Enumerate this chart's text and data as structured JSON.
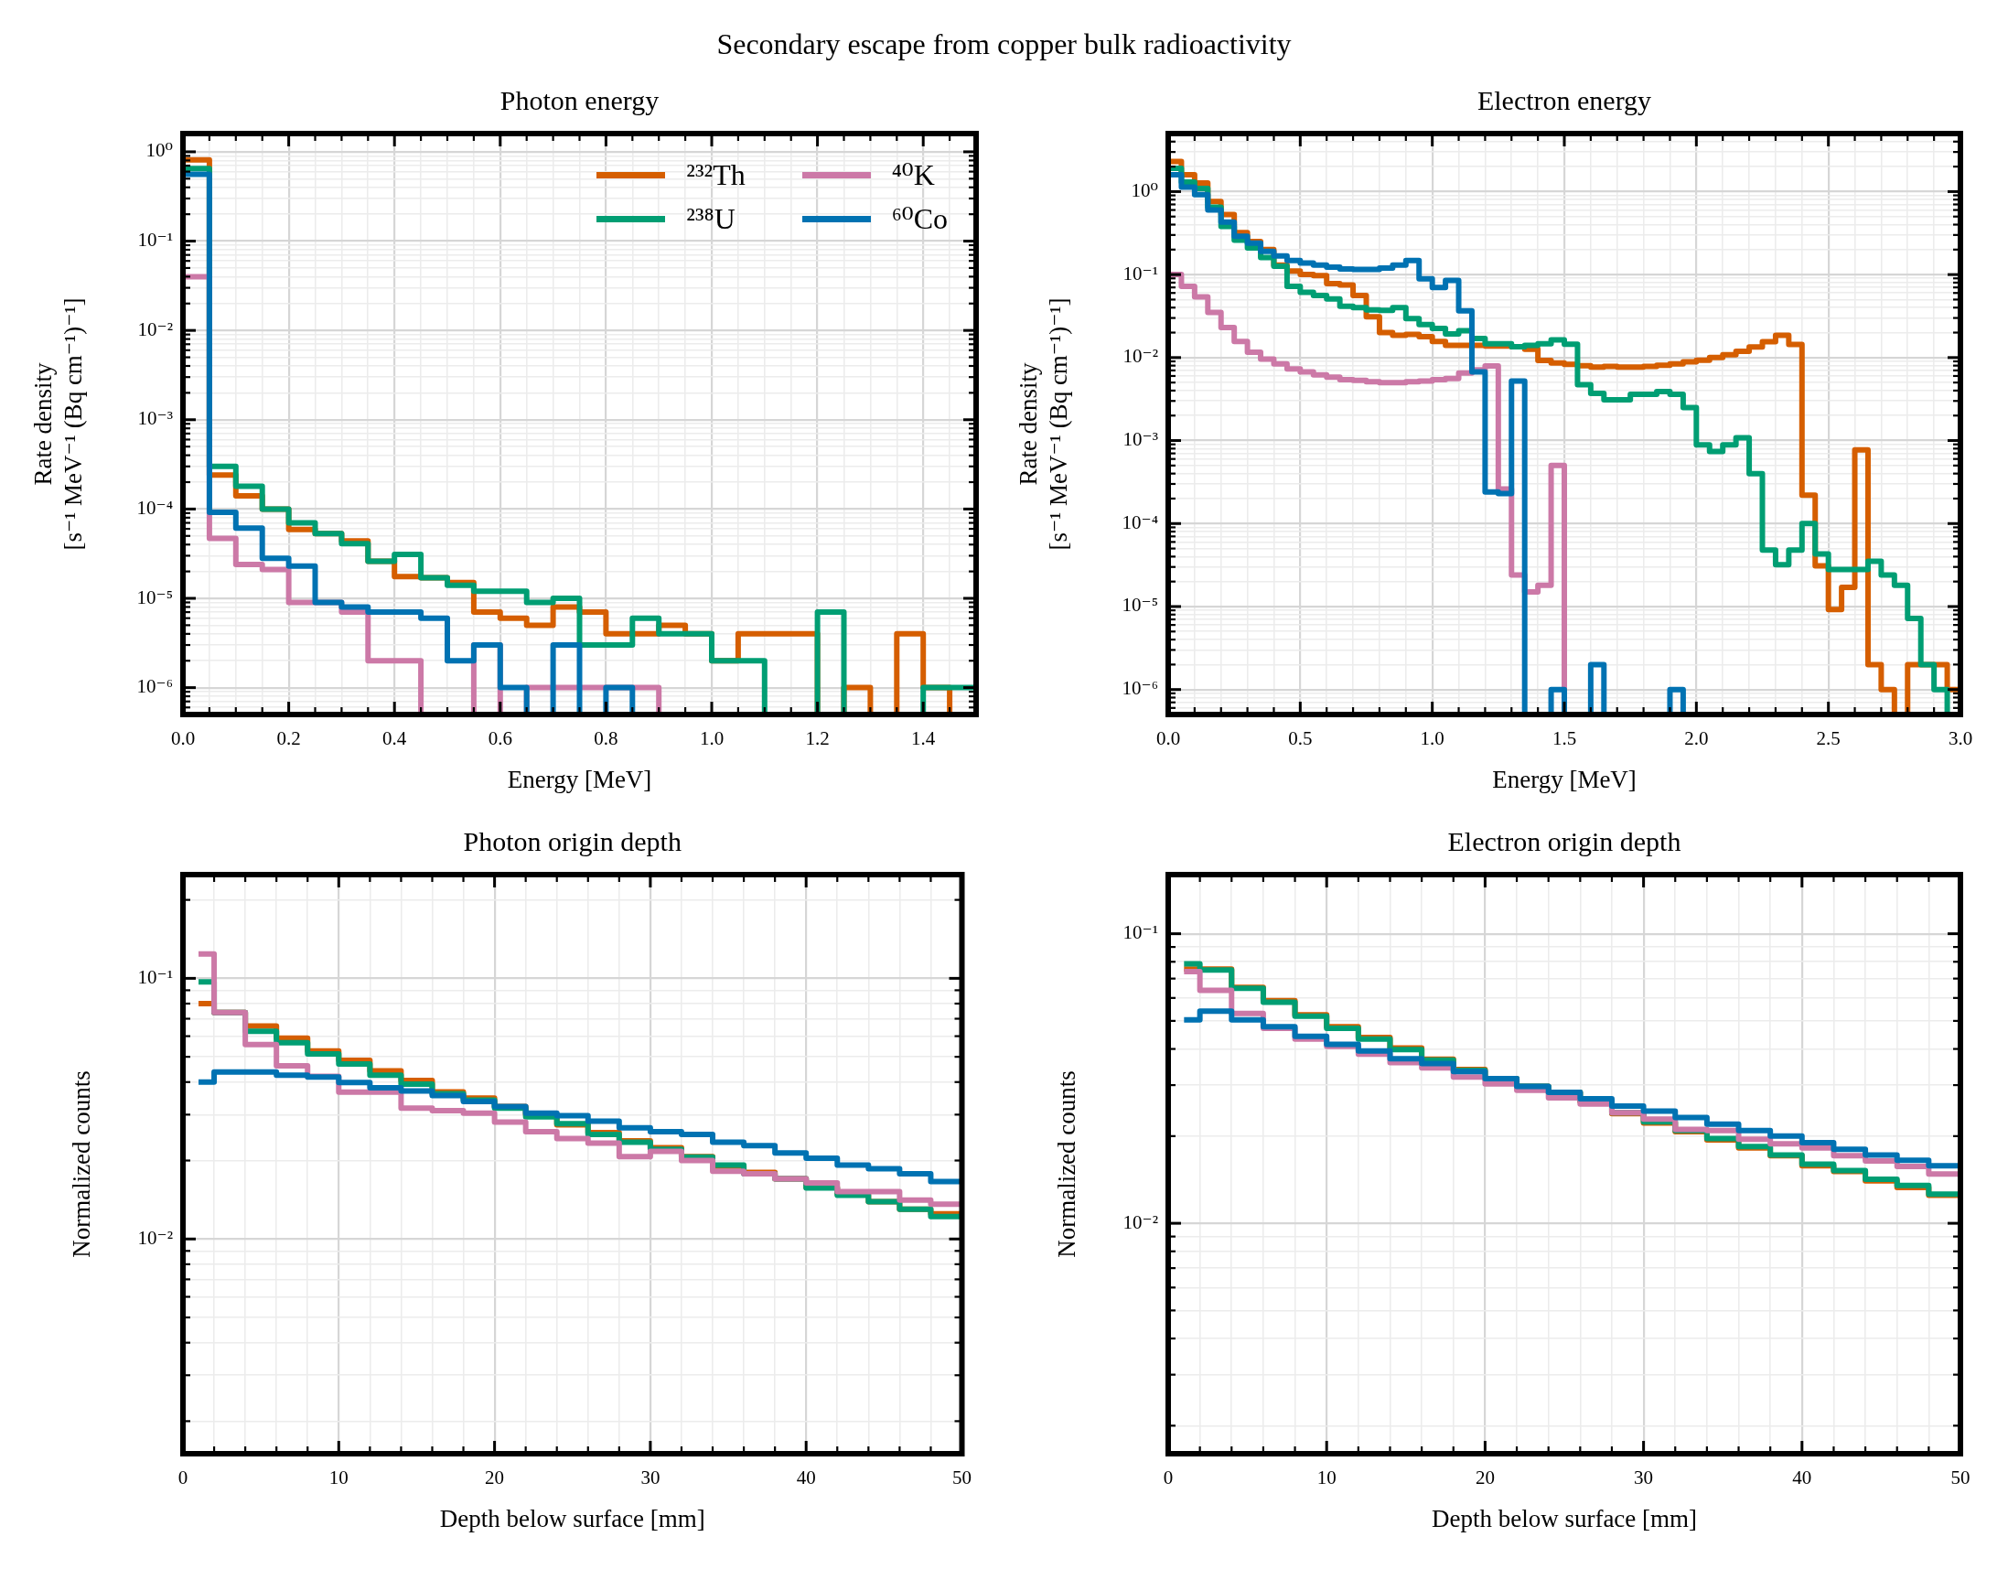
{
  "chart_data": [
    {
      "type": "other",
      "title": "Secondary escape from copper bulk radioactivity"
    },
    {
      "type": "histogram",
      "title": "Photon energy",
      "xlabel": "Energy [MeV]",
      "ylabel": "Rate density\n[s⁻¹ MeV⁻¹ (Bq cm⁻¹)⁻¹]",
      "log": "y",
      "grid": true,
      "legend": "top right",
      "bins": [
        0,
        0.05,
        0.1,
        0.15,
        0.2,
        0.25,
        0.3,
        0.35,
        0.4,
        0.45,
        0.5,
        0.55,
        0.6,
        0.65,
        0.7,
        0.75,
        0.8,
        0.85,
        0.9,
        0.95,
        1,
        1.05,
        1.1,
        1.15,
        1.2,
        1.25,
        1.3,
        1.35,
        1.4,
        1.45,
        1.5
      ],
      "series": [
        {
          "name": "²³²Th",
          "color": "#d55e00",
          "values": [
            0.81,
            0.00024,
            0.00014,
            0.0001,
            5.9e-05,
            5.3e-05,
            4.4e-05,
            2.6e-05,
            1.75e-05,
            1.7e-05,
            1.5e-05,
            7e-06,
            6e-06,
            5e-06,
            8e-06,
            7e-06,
            4e-06,
            4e-06,
            5e-06,
            4e-06,
            2e-06,
            4e-06,
            4e-06,
            4e-06,
            null,
            1e-06,
            null,
            4e-06,
            1e-06,
            null
          ]
        },
        {
          "name": "²³⁸U",
          "color": "#009e73",
          "values": [
            0.65,
            0.0003,
            0.00018,
            0.0001,
            7e-05,
            5.3e-05,
            4.1e-05,
            2.6e-05,
            3.1e-05,
            1.7e-05,
            1.4e-05,
            1.2e-05,
            1.2e-05,
            9e-06,
            1e-05,
            3e-06,
            3e-06,
            6e-06,
            4e-06,
            4e-06,
            2e-06,
            2e-06,
            null,
            null,
            7e-06,
            null,
            null,
            null,
            1e-06,
            1e-06
          ]
        },
        {
          "name": "⁴⁰K",
          "color": "#cc79a7",
          "values": [
            0.04,
            4.7e-05,
            2.4e-05,
            2.1e-05,
            9e-06,
            9e-06,
            7e-06,
            2e-06,
            2e-06,
            null,
            null,
            3e-06,
            null,
            1e-06,
            1e-06,
            1e-06,
            1e-06,
            1e-06,
            null,
            null,
            null,
            null,
            null,
            null,
            null,
            null,
            null,
            null,
            null,
            null
          ]
        },
        {
          "name": "⁶⁰Co",
          "color": "#0072b2",
          "values": [
            0.56,
            9.2e-05,
            6.1e-05,
            2.8e-05,
            2.3e-05,
            9e-06,
            8e-06,
            7e-06,
            7e-06,
            6e-06,
            2e-06,
            3e-06,
            1e-06,
            null,
            3e-06,
            null,
            1e-06,
            null,
            null,
            null,
            null,
            null,
            null,
            null,
            null,
            null,
            null,
            null,
            null,
            null
          ]
        }
      ],
      "xlim": [
        0,
        1.5
      ],
      "ylim": [
        5e-07,
        1.6
      ],
      "xticks": [
        {
          "value": 0,
          "label": "0.0"
        },
        {
          "value": 0.05,
          "label": null
        },
        {
          "value": 0.1,
          "label": null
        },
        {
          "value": 0.15,
          "label": null
        },
        0.2,
        {
          "value": 0.25,
          "label": null
        },
        {
          "value": 0.3,
          "label": null
        },
        {
          "value": 0.35,
          "label": null
        },
        0.4,
        {
          "value": 0.45,
          "label": null
        },
        {
          "value": 0.5,
          "label": null
        },
        {
          "value": 0.55,
          "label": null
        },
        0.6,
        {
          "value": 0.65,
          "label": null
        },
        {
          "value": 0.7,
          "label": null
        },
        {
          "value": 0.75,
          "label": null
        },
        0.8,
        {
          "value": 0.85,
          "label": null
        },
        {
          "value": 0.9,
          "label": null
        },
        {
          "value": 0.95,
          "label": null
        },
        {
          "value": 1,
          "label": "1.0"
        },
        {
          "value": 1.05,
          "label": null
        },
        {
          "value": 1.1,
          "label": null
        },
        {
          "value": 1.15,
          "label": null
        },
        1.2,
        {
          "value": 1.25,
          "label": null
        },
        {
          "value": 1.3,
          "label": null
        },
        {
          "value": 1.35,
          "label": null
        },
        1.4,
        {
          "value": 1.45,
          "label": null
        }
      ],
      "yticks": [
        {
          "value": 5e-07,
          "label": null
        },
        {
          "value": 6e-07,
          "label": null
        },
        {
          "value": 7e-07,
          "label": null
        },
        {
          "value": 8e-07,
          "label": null
        },
        {
          "value": 9e-07,
          "label": null
        },
        {
          "value": 1e-06,
          "label": "10⁻⁶"
        },
        {
          "value": 2e-06,
          "label": null
        },
        {
          "value": 3e-06,
          "label": null
        },
        {
          "value": 4e-06,
          "label": null
        },
        {
          "value": 5e-06,
          "label": null
        },
        {
          "value": 6e-06,
          "label": null
        },
        {
          "value": 7e-06,
          "label": null
        },
        {
          "value": 8e-06,
          "label": null
        },
        {
          "value": 9e-06,
          "label": null
        },
        {
          "value": 1e-05,
          "label": "10⁻⁵"
        },
        {
          "value": 2e-05,
          "label": null
        },
        {
          "value": 3e-05,
          "label": null
        },
        {
          "value": 4e-05,
          "label": null
        },
        {
          "value": 5e-05,
          "label": null
        },
        {
          "value": 6e-05,
          "label": null
        },
        {
          "value": 7e-05,
          "label": null
        },
        {
          "value": 8e-05,
          "label": null
        },
        {
          "value": 9e-05,
          "label": null
        },
        {
          "value": 0.0001,
          "label": "10⁻⁴"
        },
        {
          "value": 0.0002,
          "label": null
        },
        {
          "value": 0.0003,
          "label": null
        },
        {
          "value": 0.0004,
          "label": null
        },
        {
          "value": 0.0005,
          "label": null
        },
        {
          "value": 0.0006,
          "label": null
        },
        {
          "value": 0.0007,
          "label": null
        },
        {
          "value": 0.0008,
          "label": null
        },
        {
          "value": 0.0009,
          "label": null
        },
        {
          "value": 0.001,
          "label": "10⁻³"
        },
        {
          "value": 0.002,
          "label": null
        },
        {
          "value": 0.003,
          "label": null
        },
        {
          "value": 0.004,
          "label": null
        },
        {
          "value": 0.005,
          "label": null
        },
        {
          "value": 0.006,
          "label": null
        },
        {
          "value": 0.007,
          "label": null
        },
        {
          "value": 0.008,
          "label": null
        },
        {
          "value": 0.009,
          "label": null
        },
        {
          "value": 0.01,
          "label": "10⁻²"
        },
        {
          "value": 0.02,
          "label": null
        },
        {
          "value": 0.03,
          "label": null
        },
        {
          "value": 0.04,
          "label": null
        },
        {
          "value": 0.05,
          "label": null
        },
        {
          "value": 0.06,
          "label": null
        },
        {
          "value": 0.07,
          "label": null
        },
        {
          "value": 0.08,
          "label": null
        },
        {
          "value": 0.09,
          "label": null
        },
        {
          "value": 0.1,
          "label": "10⁻¹"
        },
        {
          "value": 0.2,
          "label": null
        },
        {
          "value": 0.3,
          "label": null
        },
        {
          "value": 0.4,
          "label": null
        },
        {
          "value": 0.5,
          "label": null
        },
        {
          "value": 0.6,
          "label": null
        },
        {
          "value": 0.7,
          "label": null
        },
        {
          "value": 0.8,
          "label": null
        },
        {
          "value": 0.9,
          "label": null
        },
        {
          "value": 1,
          "label": "10⁰"
        }
      ]
    },
    {
      "type": "histogram",
      "title": "Electron energy",
      "xlabel": "Energy [MeV]",
      "ylabel": "Rate density\n[s⁻¹ MeV⁻¹ (Bq cm⁻¹)⁻¹]",
      "log": "y",
      "grid": true,
      "bins": [
        0,
        0.05,
        0.1,
        0.15,
        0.2,
        0.25,
        0.3,
        0.35,
        0.4,
        0.45,
        0.5,
        0.55,
        0.6,
        0.65,
        0.7,
        0.75,
        0.8,
        0.85,
        0.9,
        0.95,
        1,
        1.05,
        1.1,
        1.15,
        1.2,
        1.25,
        1.3,
        1.35,
        1.4,
        1.45,
        1.5,
        1.55,
        1.6,
        1.65,
        1.7,
        1.75,
        1.8,
        1.85,
        1.9,
        1.95,
        2,
        2.05,
        2.1,
        2.15,
        2.2,
        2.25,
        2.3,
        2.35,
        2.4,
        2.45,
        2.5,
        2.55,
        2.6,
        2.65,
        2.7,
        2.75,
        2.8,
        2.85,
        2.9,
        2.95,
        3
      ],
      "series": [
        {
          "color": "#d55e00",
          "values": [
            2.3,
            1.6,
            1.27,
            0.76,
            0.53,
            0.32,
            0.25,
            0.2,
            0.13,
            0.11,
            0.1,
            0.097,
            0.078,
            0.075,
            0.056,
            0.031,
            0.02,
            0.0185,
            0.019,
            0.0178,
            0.0156,
            0.014,
            0.014,
            0.014,
            0.0138,
            0.0138,
            0.0135,
            0.0126,
            0.0092,
            0.0086,
            0.0083,
            0.008,
            0.0077,
            0.0078,
            0.0077,
            0.0077,
            0.0078,
            0.0081,
            0.0084,
            0.0089,
            0.0093,
            0.01,
            0.0108,
            0.0119,
            0.0134,
            0.0155,
            0.0185,
            0.0144,
            0.00022,
            3.1e-05,
            9.2e-06,
            1.7e-05,
            0.00077,
            2e-06,
            1e-06,
            null,
            2e-06,
            2e-06,
            2e-06,
            1e-06
          ]
        },
        {
          "color": "#009e73",
          "values": [
            1.9,
            1.3,
            1.09,
            0.65,
            0.38,
            0.26,
            0.21,
            0.16,
            0.126,
            0.072,
            0.061,
            0.056,
            0.051,
            0.0415,
            0.04,
            0.0375,
            0.037,
            0.04,
            0.0295,
            0.025,
            0.0225,
            0.0193,
            0.021,
            0.017,
            0.0147,
            0.0147,
            0.0135,
            0.014,
            0.0147,
            0.0163,
            0.0145,
            0.0047,
            0.0037,
            0.0031,
            0.0031,
            0.0036,
            0.0036,
            0.0039,
            0.0036,
            0.0025,
            0.00089,
            0.00074,
            0.00089,
            0.00108,
            0.0004,
            4.8e-05,
            3.2e-05,
            4.8e-05,
            0.0001,
            4.3e-05,
            2.8e-05,
            2.8e-05,
            2.8e-05,
            3.5e-05,
            2.4e-05,
            1.8e-05,
            7.2e-06,
            2e-06,
            1e-06,
            null
          ]
        },
        {
          "color": "#cc79a7",
          "values": [
            0.1,
            0.072,
            0.054,
            0.035,
            0.023,
            0.0156,
            0.0116,
            0.0096,
            0.0084,
            0.0073,
            0.0067,
            0.0062,
            0.0058,
            0.0054,
            0.0053,
            0.0051,
            0.005,
            0.005,
            0.0051,
            0.0052,
            0.0054,
            0.0056,
            0.0065,
            0.0071,
            0.0079,
            0.00026,
            2.4e-05,
            1.5e-05,
            1.8e-05,
            0.0005,
            null,
            null,
            null,
            null,
            null,
            null,
            null,
            null,
            null,
            null,
            null,
            null,
            null,
            null,
            null,
            null,
            null,
            null,
            null,
            null,
            null,
            null,
            null,
            null,
            null,
            null,
            null,
            null,
            null,
            null
          ]
        },
        {
          "color": "#0072b2",
          "values": [
            1.6,
            1.13,
            0.92,
            0.6,
            0.43,
            0.29,
            0.24,
            0.19,
            0.168,
            0.148,
            0.138,
            0.13,
            0.123,
            0.117,
            0.115,
            0.115,
            0.12,
            0.13,
            0.148,
            0.089,
            0.07,
            0.085,
            0.0365,
            0.0067,
            0.00024,
            0.00023,
            0.0052,
            null,
            null,
            1e-06,
            null,
            null,
            2e-06,
            null,
            null,
            null,
            null,
            null,
            1e-06,
            null,
            null,
            null,
            null,
            null,
            null,
            null,
            null,
            null,
            null,
            null,
            null,
            null,
            null,
            null,
            null,
            null,
            null,
            null,
            null,
            null
          ]
        }
      ],
      "xlim": [
        0,
        3
      ],
      "ylim": [
        5e-07,
        5
      ],
      "xticks": [
        {
          "value": 0,
          "label": "0.0"
        },
        {
          "value": 0.1,
          "label": null
        },
        {
          "value": 0.2,
          "label": null
        },
        {
          "value": 0.3,
          "label": null
        },
        {
          "value": 0.4,
          "label": null
        },
        0.5,
        {
          "value": 0.6,
          "label": null
        },
        {
          "value": 0.7,
          "label": null
        },
        {
          "value": 0.8,
          "label": null
        },
        {
          "value": 0.9,
          "label": null
        },
        {
          "value": 1,
          "label": "1.0"
        },
        {
          "value": 1.1,
          "label": null
        },
        {
          "value": 1.2,
          "label": null
        },
        {
          "value": 1.3,
          "label": null
        },
        {
          "value": 1.4,
          "label": null
        },
        1.5,
        {
          "value": 1.6,
          "label": null
        },
        {
          "value": 1.7,
          "label": null
        },
        {
          "value": 1.8,
          "label": null
        },
        {
          "value": 1.9,
          "label": null
        },
        {
          "value": 2,
          "label": "2.0"
        },
        {
          "value": 2.1,
          "label": null
        },
        {
          "value": 2.2,
          "label": null
        },
        {
          "value": 2.3,
          "label": null
        },
        {
          "value": 2.4,
          "label": null
        },
        2.5,
        {
          "value": 2.6,
          "label": null
        },
        {
          "value": 2.7,
          "label": null
        },
        {
          "value": 2.8,
          "label": null
        },
        {
          "value": 2.9,
          "label": null
        },
        {
          "value": 3,
          "label": "3.0"
        }
      ],
      "yticks": [
        {
          "value": 5e-07,
          "label": null
        },
        {
          "value": 6e-07,
          "label": null
        },
        {
          "value": 7e-07,
          "label": null
        },
        {
          "value": 8e-07,
          "label": null
        },
        {
          "value": 9e-07,
          "label": null
        },
        {
          "value": 1e-06,
          "label": "10⁻⁶"
        },
        {
          "value": 2e-06,
          "label": null
        },
        {
          "value": 3e-06,
          "label": null
        },
        {
          "value": 4e-06,
          "label": null
        },
        {
          "value": 5e-06,
          "label": null
        },
        {
          "value": 6e-06,
          "label": null
        },
        {
          "value": 7e-06,
          "label": null
        },
        {
          "value": 8e-06,
          "label": null
        },
        {
          "value": 9e-06,
          "label": null
        },
        {
          "value": 1e-05,
          "label": "10⁻⁵"
        },
        {
          "value": 2e-05,
          "label": null
        },
        {
          "value": 3e-05,
          "label": null
        },
        {
          "value": 4e-05,
          "label": null
        },
        {
          "value": 5e-05,
          "label": null
        },
        {
          "value": 6e-05,
          "label": null
        },
        {
          "value": 7e-05,
          "label": null
        },
        {
          "value": 8e-05,
          "label": null
        },
        {
          "value": 9e-05,
          "label": null
        },
        {
          "value": 0.0001,
          "label": "10⁻⁴"
        },
        {
          "value": 0.0002,
          "label": null
        },
        {
          "value": 0.0003,
          "label": null
        },
        {
          "value": 0.0004,
          "label": null
        },
        {
          "value": 0.0005,
          "label": null
        },
        {
          "value": 0.0006,
          "label": null
        },
        {
          "value": 0.0007,
          "label": null
        },
        {
          "value": 0.0008,
          "label": null
        },
        {
          "value": 0.0009,
          "label": null
        },
        {
          "value": 0.001,
          "label": "10⁻³"
        },
        {
          "value": 0.002,
          "label": null
        },
        {
          "value": 0.003,
          "label": null
        },
        {
          "value": 0.004,
          "label": null
        },
        {
          "value": 0.005,
          "label": null
        },
        {
          "value": 0.006,
          "label": null
        },
        {
          "value": 0.007,
          "label": null
        },
        {
          "value": 0.008,
          "label": null
        },
        {
          "value": 0.009,
          "label": null
        },
        {
          "value": 0.01,
          "label": "10⁻²"
        },
        {
          "value": 0.02,
          "label": null
        },
        {
          "value": 0.03,
          "label": null
        },
        {
          "value": 0.04,
          "label": null
        },
        {
          "value": 0.05,
          "label": null
        },
        {
          "value": 0.06,
          "label": null
        },
        {
          "value": 0.07,
          "label": null
        },
        {
          "value": 0.08,
          "label": null
        },
        {
          "value": 0.09,
          "label": null
        },
        {
          "value": 0.1,
          "label": "10⁻¹"
        },
        {
          "value": 0.2,
          "label": null
        },
        {
          "value": 0.3,
          "label": null
        },
        {
          "value": 0.4,
          "label": null
        },
        {
          "value": 0.5,
          "label": null
        },
        {
          "value": 0.6,
          "label": null
        },
        {
          "value": 0.7,
          "label": null
        },
        {
          "value": 0.8,
          "label": null
        },
        {
          "value": 0.9,
          "label": null
        },
        {
          "value": 1,
          "label": "10⁰"
        },
        {
          "value": 2,
          "label": null
        },
        {
          "value": 3,
          "label": null
        },
        {
          "value": 4,
          "label": null
        }
      ]
    },
    {
      "type": "histogram",
      "title": "Photon origin depth",
      "xlabel": "Depth below surface [mm]",
      "ylabel": "Normalized counts",
      "log": "y",
      "grid": true,
      "bins": [
        1,
        2,
        4,
        6,
        8,
        10,
        12,
        14,
        16,
        18,
        20,
        22,
        24,
        26,
        28,
        30,
        32,
        34,
        36,
        38,
        40,
        42,
        44,
        46,
        48,
        50
      ],
      "series": [
        {
          "color": "#d55e00",
          "values": [
            0.08,
            0.074,
            0.0656,
            0.059,
            0.0527,
            0.0485,
            0.0442,
            0.0406,
            0.0367,
            0.0347,
            0.0322,
            0.0301,
            0.0274,
            0.0256,
            0.0238,
            0.0224,
            0.0207,
            0.019,
            0.018,
            0.017,
            0.0158,
            0.0149,
            0.0139,
            0.013,
            0.0125
          ]
        },
        {
          "color": "#009e73",
          "values": [
            0.097,
            0.074,
            0.0626,
            0.0566,
            0.0513,
            0.0469,
            0.0425,
            0.0393,
            0.0361,
            0.0341,
            0.0318,
            0.0294,
            0.0277,
            0.0252,
            0.0235,
            0.0221,
            0.0206,
            0.0192,
            0.0178,
            0.017,
            0.0157,
            0.0147,
            0.0139,
            0.013,
            0.0122
          ]
        },
        {
          "color": "#cc79a7",
          "values": [
            0.124,
            0.074,
            0.0557,
            0.0462,
            0.0421,
            0.0366,
            0.0366,
            0.0318,
            0.0311,
            0.0304,
            0.0281,
            0.0258,
            0.0243,
            0.0233,
            0.0207,
            0.0217,
            0.02,
            0.0182,
            0.0178,
            0.017,
            0.0164,
            0.0152,
            0.0152,
            0.0141,
            0.0136
          ]
        },
        {
          "color": "#0072b2",
          "values": [
            0.04,
            0.0437,
            0.0437,
            0.0425,
            0.0418,
            0.0398,
            0.038,
            0.037,
            0.0355,
            0.0337,
            0.0322,
            0.0304,
            0.0297,
            0.0283,
            0.0267,
            0.0258,
            0.0252,
            0.0235,
            0.0228,
            0.0214,
            0.0204,
            0.0192,
            0.0186,
            0.0178,
            0.0166
          ]
        }
      ],
      "xlim": [
        0,
        50
      ],
      "ylim": [
        0.0015,
        0.25
      ],
      "xticks": [
        0,
        {
          "value": 2,
          "label": null
        },
        {
          "value": 4,
          "label": null
        },
        {
          "value": 6,
          "label": null
        },
        {
          "value": 8,
          "label": null
        },
        10,
        {
          "value": 12,
          "label": null
        },
        {
          "value": 14,
          "label": null
        },
        {
          "value": 16,
          "label": null
        },
        {
          "value": 18,
          "label": null
        },
        20,
        {
          "value": 22,
          "label": null
        },
        {
          "value": 24,
          "label": null
        },
        {
          "value": 26,
          "label": null
        },
        {
          "value": 28,
          "label": null
        },
        30,
        {
          "value": 32,
          "label": null
        },
        {
          "value": 34,
          "label": null
        },
        {
          "value": 36,
          "label": null
        },
        {
          "value": 38,
          "label": null
        },
        40,
        {
          "value": 42,
          "label": null
        },
        {
          "value": 44,
          "label": null
        },
        {
          "value": 46,
          "label": null
        },
        {
          "value": 48,
          "label": null
        },
        50
      ],
      "yticks": [
        {
          "value": 0.002,
          "label": null
        },
        {
          "value": 0.003,
          "label": null
        },
        {
          "value": 0.004,
          "label": null
        },
        {
          "value": 0.005,
          "label": null
        },
        {
          "value": 0.006,
          "label": null
        },
        {
          "value": 0.007,
          "label": null
        },
        {
          "value": 0.008,
          "label": null
        },
        {
          "value": 0.009,
          "label": null
        },
        {
          "value": 0.01,
          "label": "10⁻²"
        },
        {
          "value": 0.02,
          "label": null
        },
        {
          "value": 0.03,
          "label": null
        },
        {
          "value": 0.04,
          "label": null
        },
        {
          "value": 0.05,
          "label": null
        },
        {
          "value": 0.06,
          "label": null
        },
        {
          "value": 0.07,
          "label": null
        },
        {
          "value": 0.08,
          "label": null
        },
        {
          "value": 0.09,
          "label": null
        },
        {
          "value": 0.1,
          "label": "10⁻¹"
        },
        {
          "value": 0.2,
          "label": null
        }
      ]
    },
    {
      "type": "histogram",
      "title": "Electron origin depth",
      "xlabel": "Depth below surface [mm]",
      "ylabel": "Normalized counts",
      "log": "y",
      "grid": true,
      "bins": [
        1,
        2,
        4,
        6,
        8,
        10,
        12,
        14,
        16,
        18,
        20,
        22,
        24,
        26,
        28,
        30,
        32,
        34,
        36,
        38,
        40,
        42,
        44,
        46,
        48,
        50
      ],
      "series": [
        {
          "color": "#d55e00",
          "values": [
            0.0755,
            0.0755,
            0.0653,
            0.0587,
            0.0525,
            0.0477,
            0.0438,
            0.0403,
            0.0369,
            0.034,
            0.0316,
            0.0297,
            0.0283,
            0.0263,
            0.0239,
            0.0222,
            0.0207,
            0.0194,
            0.0182,
            0.0171,
            0.0158,
            0.0151,
            0.014,
            0.0133,
            0.0125
          ]
        },
        {
          "color": "#009e73",
          "values": [
            0.0787,
            0.075,
            0.0648,
            0.058,
            0.0519,
            0.0471,
            0.0433,
            0.0398,
            0.0366,
            0.0337,
            0.0316,
            0.0297,
            0.0283,
            0.0265,
            0.0241,
            0.0224,
            0.0209,
            0.0196,
            0.0184,
            0.0172,
            0.016,
            0.0152,
            0.0142,
            0.0135,
            0.0126
          ]
        },
        {
          "color": "#cc79a7",
          "values": [
            0.074,
            0.0638,
            0.053,
            0.0471,
            0.0433,
            0.0408,
            0.0384,
            0.0359,
            0.0344,
            0.032,
            0.0303,
            0.0288,
            0.0271,
            0.0258,
            0.0241,
            0.0229,
            0.0211,
            0.0209,
            0.0195,
            0.0188,
            0.0182,
            0.0171,
            0.0164,
            0.0157,
            0.0148
          ]
        },
        {
          "color": "#0072b2",
          "values": [
            0.0504,
            0.054,
            0.0504,
            0.0477,
            0.0442,
            0.0415,
            0.0394,
            0.037,
            0.0356,
            0.0334,
            0.0316,
            0.0297,
            0.0283,
            0.0269,
            0.0254,
            0.0244,
            0.0232,
            0.022,
            0.0209,
            0.02,
            0.019,
            0.018,
            0.0172,
            0.0165,
            0.0158
          ]
        }
      ],
      "xlim": [
        0,
        50
      ],
      "ylim": [
        0.0016,
        0.16
      ],
      "xticks": [
        0,
        {
          "value": 2,
          "label": null
        },
        {
          "value": 4,
          "label": null
        },
        {
          "value": 6,
          "label": null
        },
        {
          "value": 8,
          "label": null
        },
        10,
        {
          "value": 12,
          "label": null
        },
        {
          "value": 14,
          "label": null
        },
        {
          "value": 16,
          "label": null
        },
        {
          "value": 18,
          "label": null
        },
        20,
        {
          "value": 22,
          "label": null
        },
        {
          "value": 24,
          "label": null
        },
        {
          "value": 26,
          "label": null
        },
        {
          "value": 28,
          "label": null
        },
        30,
        {
          "value": 32,
          "label": null
        },
        {
          "value": 34,
          "label": null
        },
        {
          "value": 36,
          "label": null
        },
        {
          "value": 38,
          "label": null
        },
        40,
        {
          "value": 42,
          "label": null
        },
        {
          "value": 44,
          "label": null
        },
        {
          "value": 46,
          "label": null
        },
        {
          "value": 48,
          "label": null
        },
        50
      ],
      "yticks": [
        {
          "value": 0.002,
          "label": null
        },
        {
          "value": 0.003,
          "label": null
        },
        {
          "value": 0.004,
          "label": null
        },
        {
          "value": 0.005,
          "label": null
        },
        {
          "value": 0.006,
          "label": null
        },
        {
          "value": 0.007,
          "label": null
        },
        {
          "value": 0.008,
          "label": null
        },
        {
          "value": 0.009,
          "label": null
        },
        {
          "value": 0.01,
          "label": "10⁻²"
        },
        {
          "value": 0.02,
          "label": null
        },
        {
          "value": 0.03,
          "label": null
        },
        {
          "value": 0.04,
          "label": null
        },
        {
          "value": 0.05,
          "label": null
        },
        {
          "value": 0.06,
          "label": null
        },
        {
          "value": 0.07,
          "label": null
        },
        {
          "value": 0.08,
          "label": null
        },
        {
          "value": 0.09,
          "label": null
        },
        {
          "value": 0.1,
          "label": "10⁻¹"
        }
      ]
    }
  ]
}
